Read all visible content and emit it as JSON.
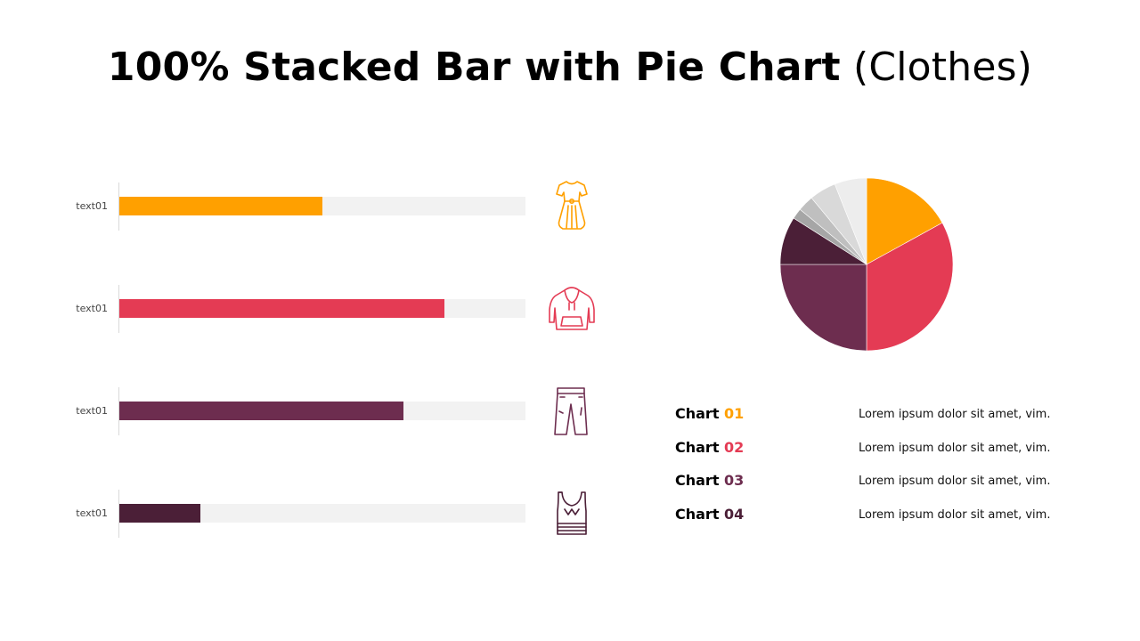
{
  "title": {
    "bold": "100% Stacked Bar with Pie Chart",
    "light": "(Clothes)"
  },
  "colors": {
    "c1": "#FFA000",
    "c2": "#E43B54",
    "c3": "#6D2D4F",
    "c4": "#4B1F37",
    "track": "#F2F2F2"
  },
  "chart_data": [
    {
      "type": "bar",
      "orientation": "horizontal",
      "stacked_percent": true,
      "categories": [
        "text01",
        "text01",
        "text01",
        "text01"
      ],
      "values": [
        50,
        80,
        70,
        20
      ],
      "ylim": [
        0,
        100
      ],
      "icons": [
        "dress-icon",
        "hoodie-icon",
        "pants-icon",
        "tank-top-icon"
      ]
    },
    {
      "type": "pie",
      "values": [
        17,
        33,
        25,
        9,
        2,
        3,
        5,
        6
      ],
      "slice_colors": [
        "#FFA000",
        "#E43B54",
        "#6D2D4F",
        "#4B1F37",
        "#A6A6A6",
        "#BFBFBF",
        "#D9D9D9",
        "#EDEDED"
      ]
    }
  ],
  "legend": [
    {
      "prefix": "Chart",
      "num": "01",
      "text": "Lorem ipsum dolor sit amet, vim."
    },
    {
      "prefix": "Chart",
      "num": "02",
      "text": "Lorem ipsum dolor sit amet, vim."
    },
    {
      "prefix": "Chart",
      "num": "03",
      "text": "Lorem ipsum dolor sit amet, vim."
    },
    {
      "prefix": "Chart",
      "num": "04",
      "text": "Lorem ipsum dolor sit amet, vim."
    }
  ]
}
